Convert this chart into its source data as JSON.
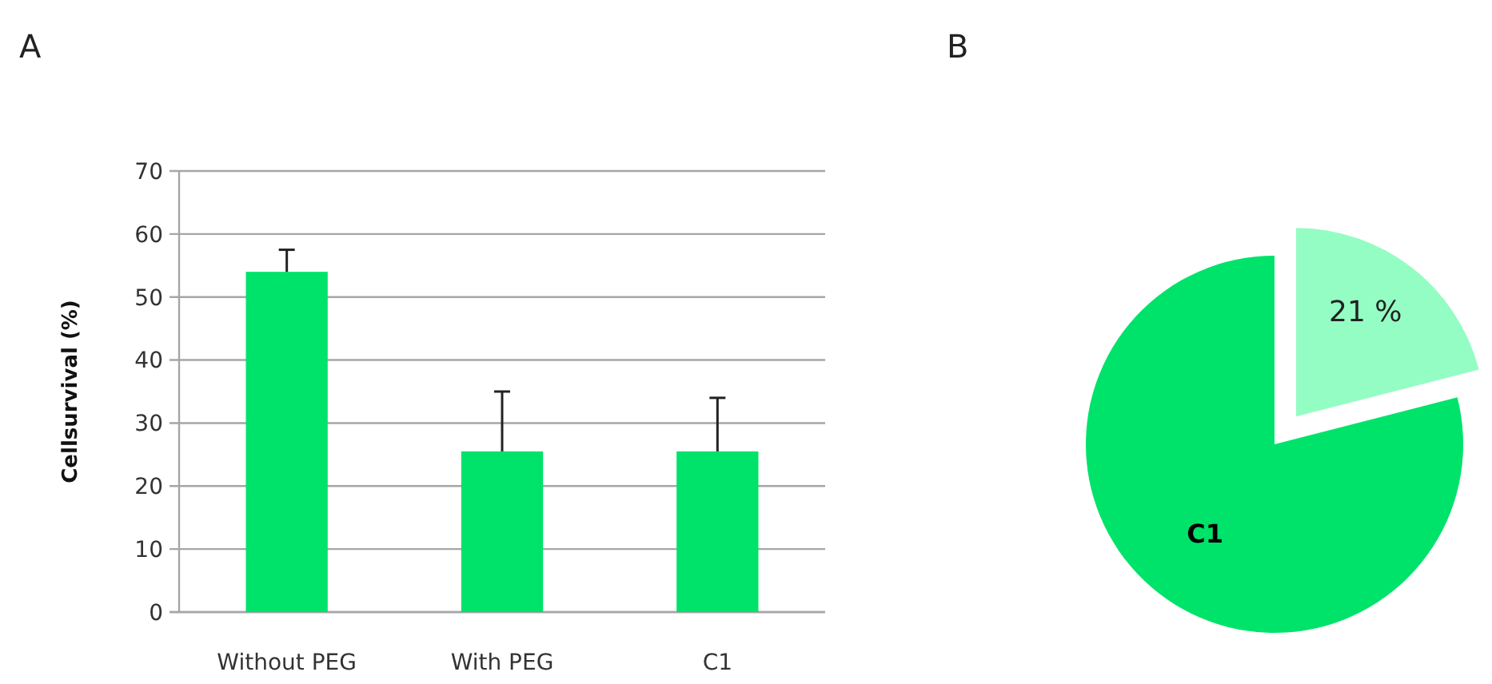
{
  "chart_data": [
    {
      "type": "bar",
      "title": "A",
      "ylabel": "Cellsurvival (%)",
      "categories": [
        "Without PEG",
        "With PEG",
        "C1"
      ],
      "values": [
        54,
        25.5,
        25.5
      ],
      "color": "#00e36a",
      "errors": [
        [
          54,
          57.5
        ],
        [
          25.5,
          35
        ],
        [
          25.5,
          34
        ]
      ],
      "ylim": [
        0,
        70
      ],
      "yticks": [
        0,
        10,
        20,
        30,
        40,
        50,
        60,
        70
      ],
      "grid": "y"
    },
    {
      "type": "pie",
      "title": "B",
      "categories": [
        null,
        "C1"
      ],
      "values": [
        21,
        79
      ],
      "colors": [
        "#94fdc3",
        "#00e36a"
      ],
      "value_labels": [
        "21 %",
        null
      ]
    }
  ]
}
